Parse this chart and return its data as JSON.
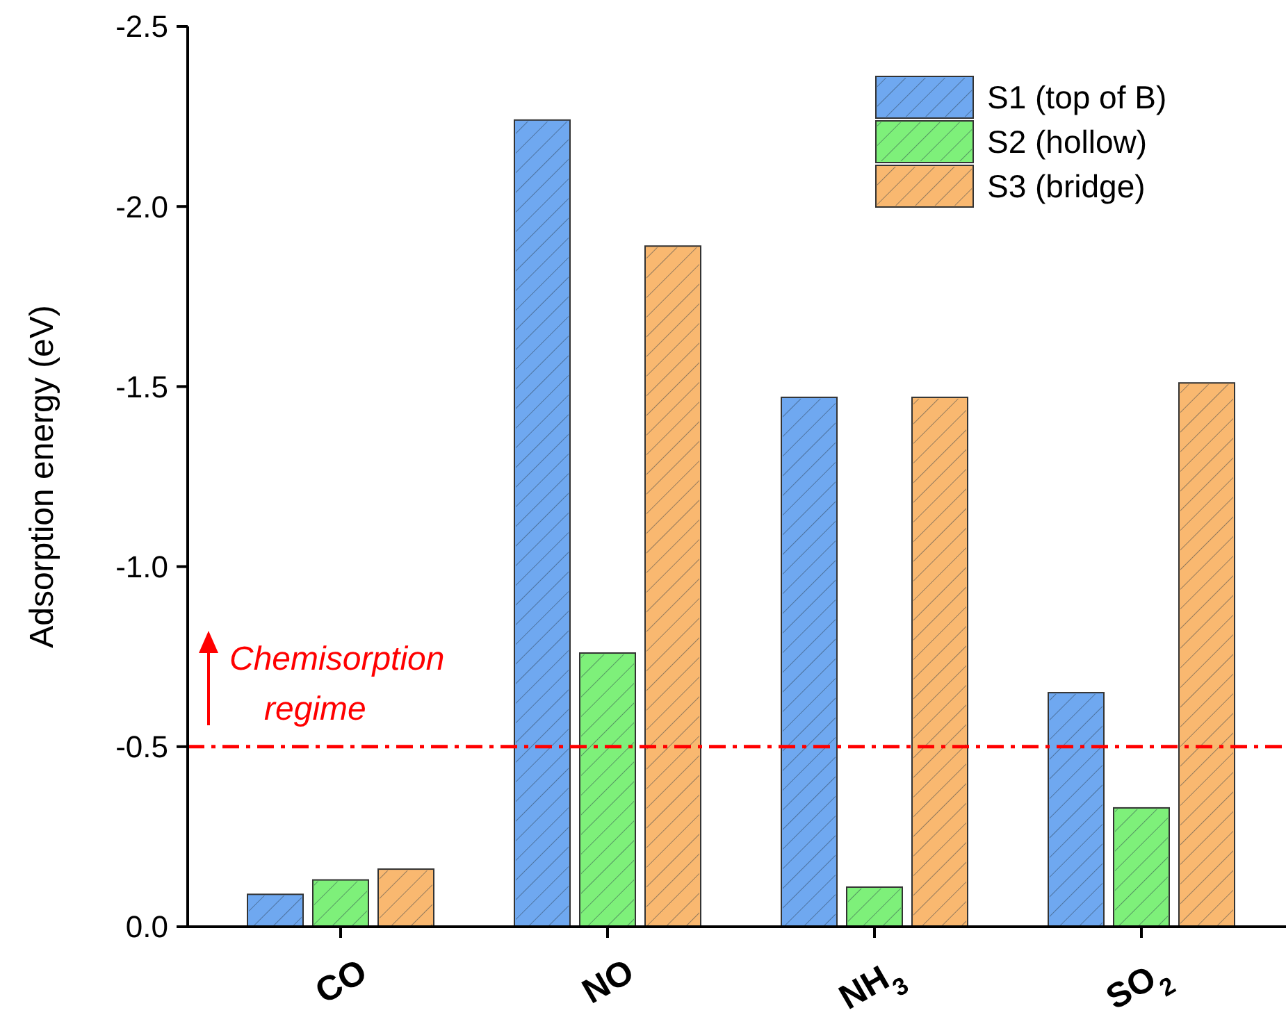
{
  "chart_data": {
    "type": "bar",
    "ylabel": "Adsorption energy (eV)",
    "categories": [
      "CO",
      "NO",
      "NH$_{3}$",
      "SO$_{2}$"
    ],
    "series": [
      {
        "name": "S1 (top of B)",
        "color": "#6fa8f0",
        "values": [
          -0.09,
          -2.24,
          -1.47,
          -0.65
        ]
      },
      {
        "name": "S2 (hollow)",
        "color": "#7ef07a",
        "values": [
          -0.13,
          -0.76,
          -0.11,
          -0.33
        ]
      },
      {
        "name": "S3 (bridge)",
        "color": "#f9b870",
        "values": [
          -0.16,
          -1.89,
          -1.47,
          -1.51
        ]
      }
    ],
    "ylim": [
      0,
      -2.5
    ],
    "yticks": [
      {
        "value": 0,
        "label": "0.0"
      },
      {
        "value": -0.5,
        "label": "-0.5"
      },
      {
        "value": -1,
        "label": "-1.0"
      },
      {
        "value": -1.5,
        "label": "-1.5"
      },
      {
        "value": -2,
        "label": "-2.0"
      },
      {
        "value": -2.5,
        "label": "-2.5"
      }
    ],
    "ref_lines": [
      {
        "axis": "y",
        "value": -0.5,
        "color": "#ff0000",
        "line_style": "dashdot"
      }
    ],
    "annotations": [
      "Chemisorption regime"
    ],
    "legend": "top right",
    "grid": false
  }
}
